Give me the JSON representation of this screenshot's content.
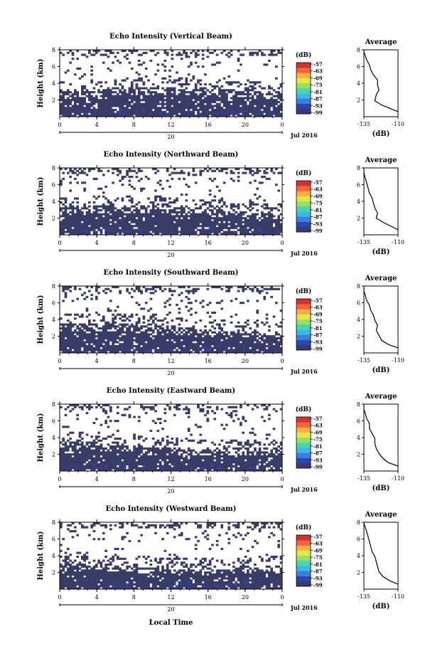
{
  "figure": {
    "xlabel": "Local Time",
    "date_label": "Jul 2016",
    "colorbar_unit": "(dB)",
    "colorbar_ticks": [
      "-57",
      "-63",
      "-69",
      "-75",
      "-81",
      "-87",
      "-93",
      "-99"
    ],
    "colors": [
      "#383c66",
      "#2f45ad",
      "#3a7fe0",
      "#3fb5e8",
      "#47d6b4",
      "#8fe26a",
      "#e2e84a",
      "#f6b23c",
      "#f0663a",
      "#d8302c"
    ],
    "background": "#ffffff"
  },
  "chart_data": [
    {
      "type": "heatmap",
      "title": "Echo Intensity (Vertical Beam)",
      "xlabel": "",
      "ylabel": "Height (km)",
      "xlim": [
        0,
        24
      ],
      "ylim": [
        0,
        8
      ],
      "x_ticks": [
        "0",
        "4",
        "8",
        "12",
        "16",
        "20",
        "0"
      ],
      "day_label": "20",
      "y_ticks": [
        "2",
        "4",
        "6",
        "8"
      ],
      "average": {
        "title": "Average",
        "xlabel": "(dB)",
        "xlim": [
          -135,
          -110
        ],
        "x_ticks": [
          "-135",
          "-110"
        ],
        "ylim": [
          0,
          8
        ],
        "y_ticks": [
          "2",
          "4",
          "6",
          "8"
        ],
        "profile": [
          [
            -110,
            0.6
          ],
          [
            -116,
            1.0
          ],
          [
            -122,
            1.4
          ],
          [
            -127,
            1.9
          ],
          [
            -126,
            2.6
          ],
          [
            -124,
            3.2
          ],
          [
            -125,
            3.8
          ],
          [
            -125,
            4.4
          ],
          [
            -128,
            5.0
          ],
          [
            -130,
            5.6
          ],
          [
            -131,
            6.2
          ],
          [
            -133,
            6.8
          ],
          [
            -134,
            7.3
          ],
          [
            -135,
            7.8
          ]
        ]
      }
    },
    {
      "type": "heatmap",
      "title": "Echo Intensity (Northward Beam)",
      "xlabel": "",
      "ylabel": "Height (km)",
      "xlim": [
        0,
        24
      ],
      "ylim": [
        0,
        8
      ],
      "x_ticks": [
        "0",
        "4",
        "8",
        "12",
        "16",
        "20",
        "0"
      ],
      "day_label": "20",
      "y_ticks": [
        "2",
        "4",
        "6",
        "8"
      ],
      "average": {
        "title": "Average",
        "xlabel": "(dB)",
        "xlim": [
          -135,
          -110
        ],
        "x_ticks": [
          "-135",
          "-110"
        ],
        "ylim": [
          0,
          8
        ],
        "y_ticks": [
          "2",
          "4",
          "6",
          "8"
        ],
        "profile": [
          [
            -110,
            0.6
          ],
          [
            -116,
            1.1
          ],
          [
            -121,
            1.5
          ],
          [
            -126,
            2.0
          ],
          [
            -125,
            2.6
          ],
          [
            -127,
            3.2
          ],
          [
            -128,
            3.8
          ],
          [
            -129,
            4.4
          ],
          [
            -131,
            5.0
          ],
          [
            -132,
            5.6
          ],
          [
            -133,
            6.2
          ],
          [
            -134,
            6.8
          ],
          [
            -135,
            7.4
          ],
          [
            -135,
            7.9
          ]
        ]
      }
    },
    {
      "type": "heatmap",
      "title": "Echo Intensity (Southward Beam)",
      "xlabel": "",
      "ylabel": "Height (km)",
      "xlim": [
        0,
        24
      ],
      "ylim": [
        0,
        8
      ],
      "x_ticks": [
        "0",
        "4",
        "8",
        "12",
        "16",
        "20",
        "0"
      ],
      "day_label": "20",
      "y_ticks": [
        "2",
        "4",
        "6",
        "8"
      ],
      "average": {
        "title": "Average",
        "xlabel": "(dB)",
        "xlim": [
          -135,
          -110
        ],
        "x_ticks": [
          "-135",
          "-110"
        ],
        "ylim": [
          0,
          8
        ],
        "y_ticks": [
          "2",
          "4",
          "6",
          "8"
        ],
        "profile": [
          [
            -110,
            0.6
          ],
          [
            -117,
            1.0
          ],
          [
            -122,
            1.5
          ],
          [
            -124,
            2.1
          ],
          [
            -126,
            2.7
          ],
          [
            -125,
            3.3
          ],
          [
            -127,
            3.9
          ],
          [
            -128,
            4.5
          ],
          [
            -130,
            5.1
          ],
          [
            -131,
            5.7
          ],
          [
            -133,
            6.3
          ],
          [
            -134,
            6.9
          ],
          [
            -135,
            7.4
          ],
          [
            -135,
            7.9
          ]
        ]
      }
    },
    {
      "type": "heatmap",
      "title": "Echo Intensity (Eastward Beam)",
      "xlabel": "",
      "ylabel": "Height (km)",
      "xlim": [
        0,
        24
      ],
      "ylim": [
        0,
        8
      ],
      "x_ticks": [
        "0",
        "4",
        "8",
        "12",
        "16",
        "20",
        "0"
      ],
      "day_label": "20",
      "y_ticks": [
        "2",
        "4",
        "6",
        "8"
      ],
      "average": {
        "title": "Average",
        "xlabel": "(dB)",
        "xlim": [
          -135,
          -110
        ],
        "x_ticks": [
          "-135",
          "-110"
        ],
        "ylim": [
          0,
          8
        ],
        "y_ticks": [
          "2",
          "4",
          "6",
          "8"
        ],
        "profile": [
          [
            -110,
            0.6
          ],
          [
            -117,
            1.0
          ],
          [
            -121,
            1.5
          ],
          [
            -124,
            2.1
          ],
          [
            -126,
            2.7
          ],
          [
            -127,
            3.3
          ],
          [
            -127,
            3.9
          ],
          [
            -129,
            4.5
          ],
          [
            -131,
            5.1
          ],
          [
            -131,
            5.7
          ],
          [
            -133,
            6.3
          ],
          [
            -134,
            6.9
          ],
          [
            -135,
            7.4
          ],
          [
            -135,
            7.9
          ]
        ]
      }
    },
    {
      "type": "heatmap",
      "title": "Echo Intensity (Westward Beam)",
      "xlabel": "Local Time",
      "ylabel": "Height (km)",
      "xlim": [
        0,
        24
      ],
      "ylim": [
        0,
        8
      ],
      "x_ticks": [
        "0",
        "4",
        "8",
        "12",
        "16",
        "20",
        "0"
      ],
      "day_label": "20",
      "y_ticks": [
        "2",
        "4",
        "6",
        "8"
      ],
      "average": {
        "title": "Average",
        "xlabel": "(dB)",
        "xlim": [
          -135,
          -110
        ],
        "x_ticks": [
          "-135",
          "-110"
        ],
        "ylim": [
          0,
          8
        ],
        "y_ticks": [
          "2",
          "4",
          "6",
          "8"
        ],
        "profile": [
          [
            -110,
            0.6
          ],
          [
            -116,
            1.0
          ],
          [
            -121,
            1.5
          ],
          [
            -124,
            2.1
          ],
          [
            -125,
            2.7
          ],
          [
            -126,
            3.3
          ],
          [
            -127,
            3.9
          ],
          [
            -129,
            4.5
          ],
          [
            -130,
            5.1
          ],
          [
            -131,
            5.7
          ],
          [
            -132,
            6.3
          ],
          [
            -133,
            6.9
          ],
          [
            -134,
            7.4
          ],
          [
            -135,
            7.9
          ]
        ]
      }
    }
  ]
}
